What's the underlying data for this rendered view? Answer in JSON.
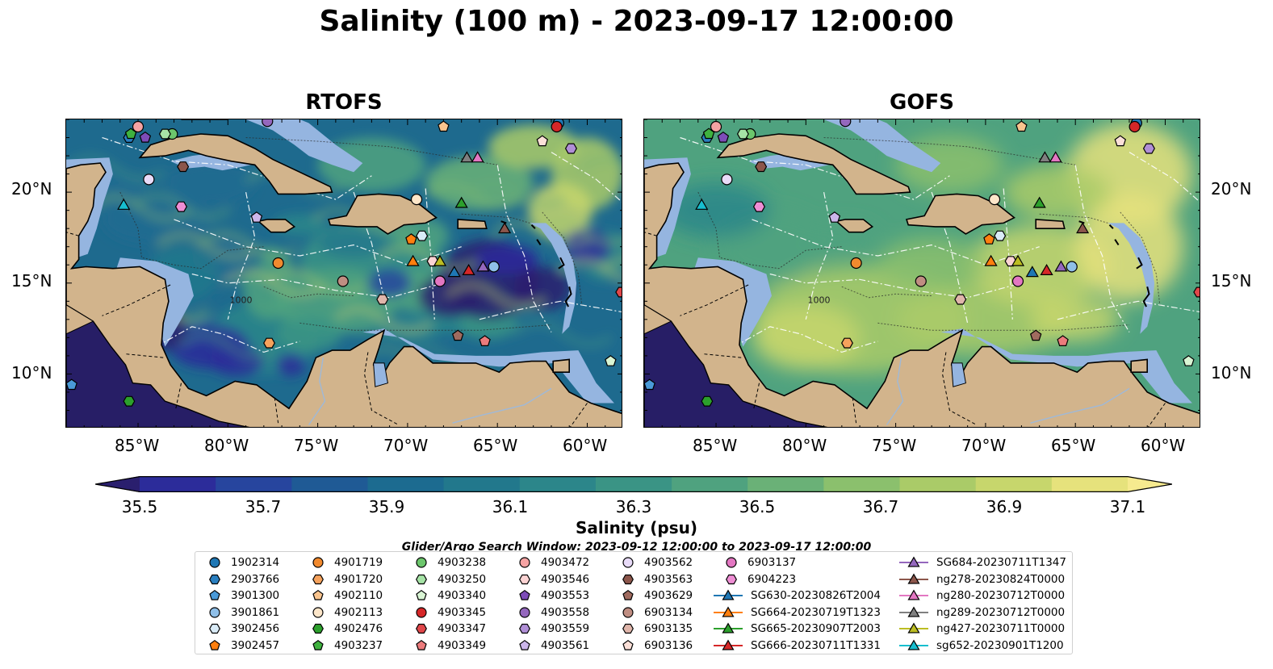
{
  "title": "Salinity (100 m) - 2023-09-17 12:00:00",
  "panels": [
    {
      "title": "RTOFS",
      "mode": "rtofs"
    },
    {
      "title": "GOFS",
      "mode": "gofs"
    }
  ],
  "lat_ticks": [
    "20°N",
    "15°N",
    "10°N"
  ],
  "lon_ticks": [
    "85°W",
    "80°W",
    "75°W",
    "70°W",
    "65°W",
    "60°W"
  ],
  "contour_label": "1000",
  "colorbar": {
    "label": "Salinity (psu)",
    "range": [
      35.5,
      37.1
    ],
    "ticks": [
      "35.5",
      "35.7",
      "35.9",
      "36.1",
      "36.3",
      "36.5",
      "36.7",
      "36.9",
      "37.1"
    ],
    "colors": [
      "#2a1f6e",
      "#2c2c9a",
      "#27459e",
      "#1f5a95",
      "#1c6b90",
      "#22788c",
      "#2c868a",
      "#3a9485",
      "#4fa27f",
      "#6ab177",
      "#8bc06d",
      "#aacb68",
      "#c7d66c",
      "#e6e27c",
      "#f6ea8f"
    ]
  },
  "legend_title": "Glider/Argo Search Window: 2023-09-12 12:00:00 to 2023-09-17 12:00:00",
  "legend_items": [
    {
      "label": "1902314",
      "marker": "circle",
      "color": "#1f77b4"
    },
    {
      "label": "2903766",
      "marker": "hexagon",
      "color": "#2a7fc0"
    },
    {
      "label": "3901300",
      "marker": "pentagon",
      "color": "#4a9ad8"
    },
    {
      "label": "3901861",
      "marker": "circle",
      "color": "#8fbfe8"
    },
    {
      "label": "3902456",
      "marker": "hexagon",
      "color": "#d9ebf7"
    },
    {
      "label": "3902457",
      "marker": "pentagon",
      "color": "#ff7f0e"
    },
    {
      "label": "4901719",
      "marker": "circle",
      "color": "#f28a2e"
    },
    {
      "label": "4901720",
      "marker": "hexagon",
      "color": "#f5a25c"
    },
    {
      "label": "4902110",
      "marker": "pentagon",
      "color": "#f9c48e"
    },
    {
      "label": "4902113",
      "marker": "circle",
      "color": "#fde6c9"
    },
    {
      "label": "4902476",
      "marker": "hexagon",
      "color": "#2ca02c"
    },
    {
      "label": "4903237",
      "marker": "pentagon",
      "color": "#3fb23f"
    },
    {
      "label": "4903238",
      "marker": "circle",
      "color": "#6cc66c"
    },
    {
      "label": "4903250",
      "marker": "hexagon",
      "color": "#a6e3a6"
    },
    {
      "label": "4903340",
      "marker": "pentagon",
      "color": "#d9f5d4"
    },
    {
      "label": "4903345",
      "marker": "circle",
      "color": "#d62728"
    },
    {
      "label": "4903347",
      "marker": "hexagon",
      "color": "#e0474a"
    },
    {
      "label": "4903349",
      "marker": "pentagon",
      "color": "#ec7b7c"
    },
    {
      "label": "4903472",
      "marker": "circle",
      "color": "#f5a3a3"
    },
    {
      "label": "4903546",
      "marker": "hexagon",
      "color": "#fbd3d3"
    },
    {
      "label": "4903553",
      "marker": "pentagon",
      "color": "#7d4cb8"
    },
    {
      "label": "4903558",
      "marker": "circle",
      "color": "#9467bd"
    },
    {
      "label": "4903559",
      "marker": "hexagon",
      "color": "#b08fd6"
    },
    {
      "label": "4903561",
      "marker": "pentagon",
      "color": "#ccb6ea"
    },
    {
      "label": "4903562",
      "marker": "circle",
      "color": "#e8dbf8"
    },
    {
      "label": "4903563",
      "marker": "hexagon",
      "color": "#8c564b"
    },
    {
      "label": "4903629",
      "marker": "pentagon",
      "color": "#a06b5f"
    },
    {
      "label": "6903134",
      "marker": "circle",
      "color": "#c08e82"
    },
    {
      "label": "6903135",
      "marker": "hexagon",
      "color": "#e0b6ab"
    },
    {
      "label": "6903136",
      "marker": "pentagon",
      "color": "#fbe0d8"
    },
    {
      "label": "6903137",
      "marker": "circle",
      "color": "#e377c2"
    },
    {
      "label": "6904223",
      "marker": "hexagon",
      "color": "#ee8ed4"
    },
    {
      "label": "SG630-20230826T2004",
      "marker": "triangle",
      "color": "#1f77b4"
    },
    {
      "label": "SG664-20230719T1323",
      "marker": "triangle",
      "color": "#ff7f0e"
    },
    {
      "label": "SG665-20230907T2003",
      "marker": "triangle",
      "color": "#2ca02c"
    },
    {
      "label": "SG666-20230711T1331",
      "marker": "triangle",
      "color": "#d62728"
    },
    {
      "label": "SG684-20230711T1347",
      "marker": "triangle",
      "color": "#9467bd"
    },
    {
      "label": "ng278-20230824T0000",
      "marker": "triangle",
      "color": "#8c564b"
    },
    {
      "label": "ng280-20230712T0000",
      "marker": "triangle",
      "color": "#e377c2"
    },
    {
      "label": "ng289-20230712T0000",
      "marker": "triangle",
      "color": "#7f7f7f"
    },
    {
      "label": "ng427-20230711T0000",
      "marker": "triangle",
      "color": "#bcbd22"
    },
    {
      "label": "sg652-20230901T1200",
      "marker": "triangle",
      "color": "#17becf"
    }
  ],
  "map_extent": {
    "lon": [
      -89,
      -58
    ],
    "lat": [
      7,
      24
    ]
  },
  "stations": [
    {
      "id": "1902314",
      "lon": -61.6,
      "lat": 23.8
    },
    {
      "id": "2903766",
      "lon": -85.5,
      "lat": 23.0
    },
    {
      "id": "3901300",
      "lon": -88.7,
      "lat": 9.4
    },
    {
      "id": "3901861",
      "lon": -65.2,
      "lat": 15.9
    },
    {
      "id": "3902456",
      "lon": -69.2,
      "lat": 17.6
    },
    {
      "id": "3902457",
      "lon": -69.8,
      "lat": 17.4
    },
    {
      "id": "4901719",
      "lon": -77.2,
      "lat": 16.1
    },
    {
      "id": "4901720",
      "lon": -77.7,
      "lat": 11.7
    },
    {
      "id": "4902110",
      "lon": -68.0,
      "lat": 23.6
    },
    {
      "id": "4902113",
      "lon": -69.5,
      "lat": 19.6
    },
    {
      "id": "4902476",
      "lon": -85.5,
      "lat": 8.5
    },
    {
      "id": "4903237",
      "lon": -85.4,
      "lat": 23.2
    },
    {
      "id": "4903238",
      "lon": -83.1,
      "lat": 23.2
    },
    {
      "id": "4903250",
      "lon": -83.5,
      "lat": 23.2
    },
    {
      "id": "4903340",
      "lon": -58.7,
      "lat": 10.7
    },
    {
      "id": "4903345",
      "lon": -61.7,
      "lat": 23.6
    },
    {
      "id": "4903347",
      "lon": -58.1,
      "lat": 14.5
    },
    {
      "id": "4903349",
      "lon": -65.7,
      "lat": 11.8
    },
    {
      "id": "4903472",
      "lon": -85.0,
      "lat": 23.6
    },
    {
      "id": "4903546",
      "lon": -68.6,
      "lat": 16.2
    },
    {
      "id": "4903553",
      "lon": -84.6,
      "lat": 23.0
    },
    {
      "id": "4903558",
      "lon": -77.8,
      "lat": 23.9
    },
    {
      "id": "4903559",
      "lon": -60.9,
      "lat": 22.4
    },
    {
      "id": "4903561",
      "lon": -78.4,
      "lat": 18.6
    },
    {
      "id": "4903562",
      "lon": -84.4,
      "lat": 20.7
    },
    {
      "id": "4903563",
      "lon": -82.5,
      "lat": 21.4
    },
    {
      "id": "4903629",
      "lon": -67.2,
      "lat": 12.1
    },
    {
      "id": "6903134",
      "lon": -73.6,
      "lat": 15.1
    },
    {
      "id": "6903135",
      "lon": -71.4,
      "lat": 14.1
    },
    {
      "id": "6903136",
      "lon": -62.5,
      "lat": 22.8
    },
    {
      "id": "6903137",
      "lon": -68.2,
      "lat": 15.1
    },
    {
      "id": "6904223",
      "lon": -82.6,
      "lat": 19.2
    },
    {
      "id": "SG630-20230826T2004",
      "lon": -67.4,
      "lat": 15.6
    },
    {
      "id": "SG664-20230719T1323",
      "lon": -69.7,
      "lat": 16.2
    },
    {
      "id": "SG665-20230907T2003",
      "lon": -67.0,
      "lat": 19.4
    },
    {
      "id": "SG666-20230711T1331",
      "lon": -66.6,
      "lat": 15.7
    },
    {
      "id": "SG684-20230711T1347",
      "lon": -65.8,
      "lat": 15.9
    },
    {
      "id": "ng278-20230824T0000",
      "lon": -64.6,
      "lat": 18.0
    },
    {
      "id": "ng280-20230712T0000",
      "lon": -66.1,
      "lat": 21.9
    },
    {
      "id": "ng289-20230712T0000",
      "lon": -66.7,
      "lat": 21.9
    },
    {
      "id": "ng427-20230711T0000",
      "lon": -68.2,
      "lat": 16.2
    },
    {
      "id": "sg652-20230901T1200",
      "lon": -85.8,
      "lat": 19.3
    }
  ]
}
